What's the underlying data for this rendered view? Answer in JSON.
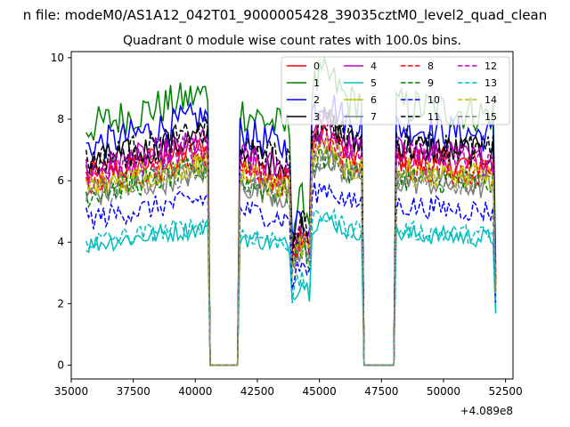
{
  "figure": {
    "suptitle": "n file: modeM0/AS1A12_042T01_9000005428_39035cztM0_level2_quad_clean"
  },
  "chart_data": {
    "type": "line",
    "title": "Quadrant 0 module wise count rates with 100.0s bins.",
    "xlabel": "",
    "ylabel": "",
    "x_offset_label": "+4.089e8",
    "xlim": [
      35000,
      52800
    ],
    "ylim": [
      -0.45,
      10.2
    ],
    "xticks": [
      35000,
      37500,
      40000,
      42500,
      45000,
      47500,
      50000,
      52500
    ],
    "yticks": [
      0,
      2,
      4,
      6,
      8,
      10
    ],
    "grid": false,
    "legend_position": "top-right",
    "legend_columns": 4,
    "x_range_data": [
      35600,
      52100
    ],
    "gaps": [
      [
        40600,
        41700
      ],
      [
        46800,
        48000
      ]
    ],
    "series": [
      {
        "name": "0",
        "color": "#ff0000",
        "dash": "solid",
        "level": 6.6
      },
      {
        "name": "1",
        "color": "#008000",
        "dash": "solid",
        "level": 8.3
      },
      {
        "name": "2",
        "color": "#0000ff",
        "dash": "solid",
        "level": 7.6
      },
      {
        "name": "3",
        "color": "#000000",
        "dash": "solid",
        "level": 7.0
      },
      {
        "name": "4",
        "color": "#bf00bf",
        "dash": "solid",
        "level": 6.8
      },
      {
        "name": "5",
        "color": "#00bfbf",
        "dash": "solid",
        "level": 4.2
      },
      {
        "name": "6",
        "color": "#bfbf00",
        "dash": "solid",
        "level": 6.2
      },
      {
        "name": "7",
        "color": "#808080",
        "dash": "solid",
        "level": 5.9
      },
      {
        "name": "8",
        "color": "#ff0000",
        "dash": "dashed",
        "level": 6.4
      },
      {
        "name": "9",
        "color": "#008000",
        "dash": "dashed",
        "level": 6.0
      },
      {
        "name": "10",
        "color": "#0000ff",
        "dash": "dashed",
        "level": 5.1
      },
      {
        "name": "11",
        "color": "#000000",
        "dash": "dashed",
        "level": 7.1
      },
      {
        "name": "12",
        "color": "#bf00bf",
        "dash": "dashed",
        "level": 6.7
      },
      {
        "name": "13",
        "color": "#00bfbf",
        "dash": "dashed",
        "level": 4.3
      },
      {
        "name": "14",
        "color": "#bfbf00",
        "dash": "dashed",
        "level": 6.2
      },
      {
        "name": "15",
        "color": "#808080",
        "dash": "dashed",
        "level": 6.0
      }
    ]
  }
}
